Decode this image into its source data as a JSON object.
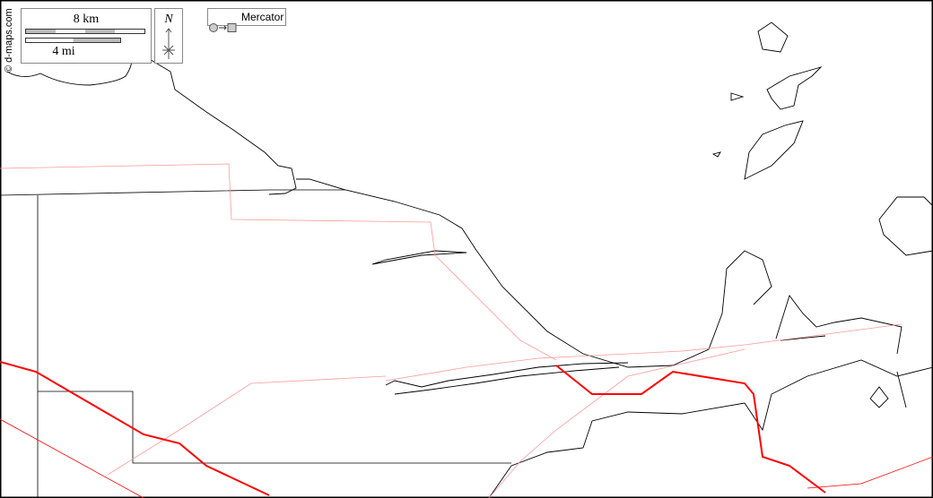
{
  "credit": "© d-maps.com",
  "scale": {
    "metric": "8 km",
    "imperial": "4 mi"
  },
  "north": {
    "label": "N"
  },
  "projection": {
    "label": "Mercator",
    "icon": "circle-to-square-icon"
  },
  "colors": {
    "coast": "#000000",
    "border": "#000000",
    "road_major": "#ff0000",
    "road_minor": "#ff9999"
  }
}
